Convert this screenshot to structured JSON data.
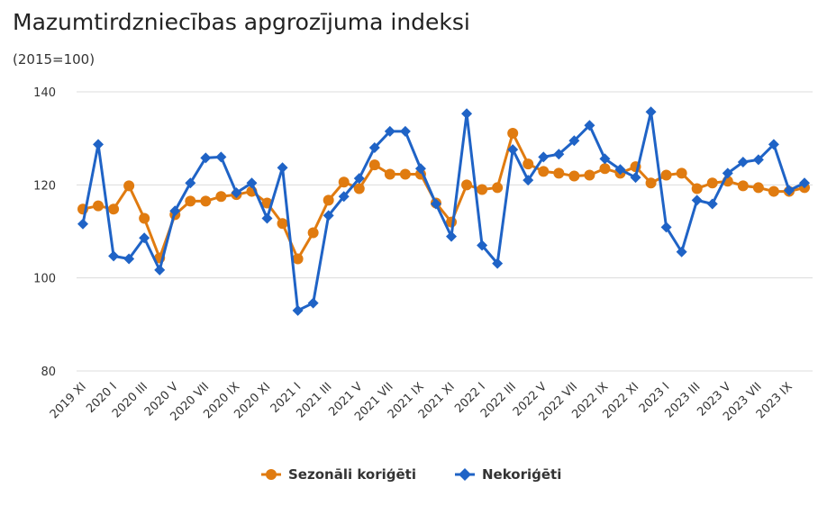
{
  "chart_data": {
    "type": "line",
    "title": "Mazumtirdzniecības apgrozījuma indeksi",
    "subtitle": "(2015=100)",
    "xlabel": "",
    "ylabel": "",
    "ylim": [
      80,
      140
    ],
    "yticks": [
      "80",
      "100",
      "120",
      "140"
    ],
    "ytick_values": [
      80,
      100,
      120,
      140
    ],
    "grid": true,
    "legend_position": "bottom",
    "x": [
      "2019 XI",
      "2019 XII",
      "2020 I",
      "2020 II",
      "2020 III",
      "2020 IV",
      "2020 V",
      "2020 VI",
      "2020 VII",
      "2020 VIII",
      "2020 IX",
      "2020 X",
      "2020 XI",
      "2020 XII",
      "2021 I",
      "2021 II",
      "2021 III",
      "2021 IV",
      "2021 V",
      "2021 VI",
      "2021 VII",
      "2021 VIII",
      "2021 IX",
      "2021 X",
      "2021 XI",
      "2021 XII",
      "2022 I",
      "2022 II",
      "2022 III",
      "2022 IV",
      "2022 V",
      "2022 VI",
      "2022 VII",
      "2022 VIII",
      "2022 IX",
      "2022 X",
      "2022 XI",
      "2022 XII",
      "2023 I",
      "2023 II",
      "2023 III",
      "2023 IV",
      "2023 V",
      "2023 VI",
      "2023 VII",
      "2023 VIII",
      "2023 IX",
      "2023 X"
    ],
    "series": [
      {
        "name": "Sezonāli koriģēti",
        "color": "#e07b10",
        "marker": "circle",
        "values": [
          114.8,
          115.5,
          114.8,
          119.8,
          112.8,
          104.3,
          113.6,
          116.5,
          116.5,
          117.5,
          117.9,
          118.6,
          116.1,
          111.7,
          104.1,
          109.7,
          116.7,
          120.6,
          119.2,
          124.3,
          122.3,
          122.3,
          122.3,
          116.1,
          112.0,
          120.0,
          119.0,
          119.4,
          131.1,
          124.5,
          122.9,
          122.5,
          121.9,
          122.1,
          123.5,
          122.5,
          123.9,
          120.4,
          122.1,
          122.5,
          119.2,
          120.4,
          120.8,
          119.8,
          119.4,
          118.6,
          118.6,
          119.4
        ]
      },
      {
        "name": "Nekoriģēti",
        "color": "#1f63c6",
        "marker": "diamond",
        "values": [
          111.6,
          128.7,
          104.7,
          104.1,
          108.6,
          101.7,
          114.4,
          120.4,
          125.8,
          126.0,
          118.3,
          120.4,
          112.8,
          123.7,
          93.0,
          94.6,
          113.4,
          117.5,
          121.4,
          128.0,
          131.5,
          131.5,
          123.5,
          115.9,
          108.9,
          135.3,
          107.0,
          103.1,
          127.6,
          121.0,
          126.0,
          126.6,
          129.5,
          132.8,
          125.6,
          123.3,
          121.6,
          135.7,
          110.9,
          105.6,
          116.7,
          115.9,
          122.5,
          124.9,
          125.4,
          128.7,
          118.8,
          120.4
        ]
      }
    ]
  }
}
